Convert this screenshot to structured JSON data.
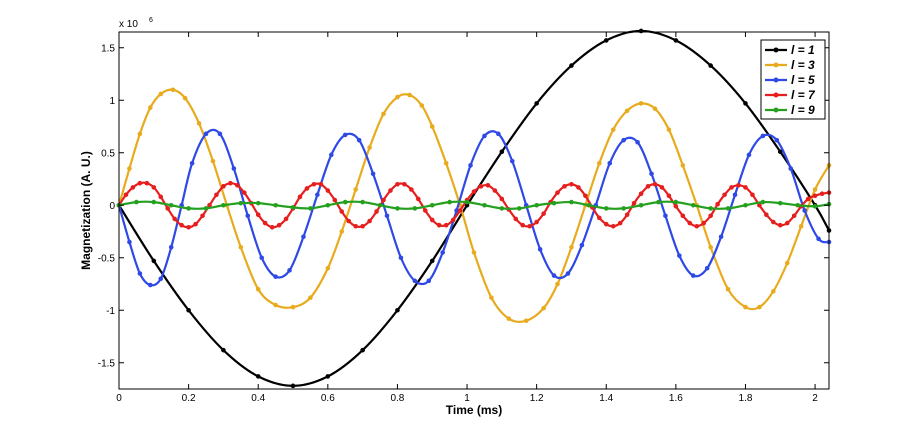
{
  "chart_data": {
    "type": "line",
    "xlabel": "Time (ms)",
    "ylabel": "Magnetization (A. U.)",
    "y_exponent_base": "x 10",
    "y_exponent_power": "6",
    "xlim": [
      0,
      2.04
    ],
    "ylim": [
      -1.75,
      1.65
    ],
    "x_ticks": [
      0,
      0.2,
      0.4,
      0.6,
      0.8,
      1,
      1.2,
      1.4,
      1.6,
      1.8,
      2
    ],
    "x_tick_labels": [
      "0",
      "0.2",
      "0.4",
      "0.6",
      "0.8",
      "1",
      "1.2",
      "1.4",
      "1.6",
      "1.8",
      "2"
    ],
    "y_ticks": [
      -1.5,
      -1,
      -0.5,
      0,
      0.5,
      1,
      1.5
    ],
    "y_tick_labels": [
      "-1.5",
      "-1",
      "-0.5",
      "0",
      "0.5",
      "1",
      "1.5"
    ],
    "grid": false,
    "legend_position": "top-right",
    "series": [
      {
        "name": "l = 1",
        "color": "#000000",
        "x": [
          0,
          0.1,
          0.2,
          0.3,
          0.4,
          0.5,
          0.6,
          0.7,
          0.8,
          0.9,
          1.0,
          1.1,
          1.2,
          1.3,
          1.4,
          1.5,
          1.6,
          1.7,
          1.8,
          1.9,
          2.0,
          2.04
        ],
        "values": [
          0,
          -0.53,
          -1.0,
          -1.38,
          -1.63,
          -1.72,
          -1.63,
          -1.38,
          -1.0,
          -0.53,
          0,
          0.51,
          0.97,
          1.33,
          1.57,
          1.66,
          1.57,
          1.33,
          0.97,
          0.51,
          0,
          -0.24
        ]
      },
      {
        "name": "l = 3",
        "color": "#e8ab1e",
        "x": [
          0,
          0.03,
          0.06,
          0.09,
          0.12,
          0.155,
          0.19,
          0.23,
          0.27,
          0.31,
          0.35,
          0.4,
          0.45,
          0.5,
          0.55,
          0.6,
          0.64,
          0.68,
          0.72,
          0.76,
          0.8,
          0.835,
          0.87,
          0.9,
          0.94,
          0.98,
          1.02,
          1.07,
          1.12,
          1.17,
          1.22,
          1.26,
          1.3,
          1.34,
          1.38,
          1.42,
          1.46,
          1.5,
          1.54,
          1.58,
          1.62,
          1.66,
          1.7,
          1.75,
          1.8,
          1.84,
          1.88,
          1.92,
          1.96,
          2.0,
          2.04
        ],
        "values": [
          0,
          0.35,
          0.68,
          0.93,
          1.06,
          1.1,
          1.02,
          0.78,
          0.42,
          0.0,
          -0.4,
          -0.8,
          -0.95,
          -0.97,
          -0.88,
          -0.6,
          -0.25,
          0.15,
          0.55,
          0.87,
          1.03,
          1.05,
          0.95,
          0.75,
          0.4,
          0.0,
          -0.45,
          -0.88,
          -1.08,
          -1.1,
          -0.98,
          -0.75,
          -0.4,
          0.0,
          0.4,
          0.72,
          0.9,
          0.97,
          0.92,
          0.72,
          0.38,
          0.0,
          -0.4,
          -0.8,
          -0.97,
          -0.97,
          -0.82,
          -0.55,
          -0.2,
          0.15,
          0.38
        ]
      },
      {
        "name": "l = 5",
        "color": "#2e49e6",
        "x": [
          0,
          0.03,
          0.06,
          0.09,
          0.12,
          0.15,
          0.18,
          0.21,
          0.25,
          0.29,
          0.33,
          0.37,
          0.41,
          0.45,
          0.49,
          0.53,
          0.57,
          0.61,
          0.65,
          0.69,
          0.73,
          0.77,
          0.81,
          0.85,
          0.89,
          0.93,
          0.97,
          1.01,
          1.05,
          1.09,
          1.13,
          1.17,
          1.21,
          1.25,
          1.29,
          1.33,
          1.37,
          1.41,
          1.45,
          1.49,
          1.53,
          1.57,
          1.61,
          1.65,
          1.69,
          1.73,
          1.77,
          1.81,
          1.85,
          1.89,
          1.93,
          1.97,
          2.01,
          2.04
        ],
        "values": [
          0,
          -0.35,
          -0.65,
          -0.76,
          -0.7,
          -0.4,
          0.0,
          0.4,
          0.68,
          0.68,
          0.35,
          -0.1,
          -0.5,
          -0.68,
          -0.62,
          -0.3,
          0.1,
          0.48,
          0.67,
          0.62,
          0.3,
          -0.1,
          -0.5,
          -0.72,
          -0.72,
          -0.45,
          -0.05,
          0.38,
          0.66,
          0.68,
          0.42,
          0.0,
          -0.42,
          -0.67,
          -0.65,
          -0.38,
          0.0,
          0.4,
          0.62,
          0.6,
          0.3,
          -0.1,
          -0.48,
          -0.67,
          -0.6,
          -0.3,
          0.1,
          0.48,
          0.66,
          0.62,
          0.35,
          -0.05,
          -0.32,
          -0.35
        ]
      },
      {
        "name": "l = 7",
        "color": "#e61e1e",
        "x": [
          0,
          0.02,
          0.04,
          0.06,
          0.08,
          0.1,
          0.12,
          0.14,
          0.16,
          0.18,
          0.2,
          0.22,
          0.24,
          0.26,
          0.28,
          0.3,
          0.32,
          0.34,
          0.36,
          0.38,
          0.4,
          0.42,
          0.44,
          0.46,
          0.48,
          0.5,
          0.52,
          0.54,
          0.56,
          0.58,
          0.6,
          0.62,
          0.64,
          0.66,
          0.68,
          0.7,
          0.72,
          0.74,
          0.76,
          0.78,
          0.8,
          0.82,
          0.84,
          0.86,
          0.88,
          0.9,
          0.92,
          0.94,
          0.96,
          0.98,
          1.0,
          1.02,
          1.04,
          1.06,
          1.08,
          1.1,
          1.12,
          1.14,
          1.16,
          1.18,
          1.2,
          1.22,
          1.24,
          1.26,
          1.28,
          1.3,
          1.32,
          1.34,
          1.36,
          1.38,
          1.4,
          1.42,
          1.44,
          1.46,
          1.48,
          1.5,
          1.52,
          1.54,
          1.56,
          1.58,
          1.6,
          1.62,
          1.64,
          1.66,
          1.68,
          1.7,
          1.72,
          1.74,
          1.76,
          1.78,
          1.8,
          1.82,
          1.84,
          1.86,
          1.88,
          1.9,
          1.92,
          1.94,
          1.96,
          1.98,
          2.0,
          2.02,
          2.04
        ],
        "values": [
          0,
          0.1,
          0.17,
          0.21,
          0.21,
          0.17,
          0.08,
          -0.03,
          -0.13,
          -0.19,
          -0.21,
          -0.18,
          -0.1,
          0.0,
          0.1,
          0.18,
          0.21,
          0.19,
          0.12,
          0.02,
          -0.09,
          -0.17,
          -0.21,
          -0.19,
          -0.13,
          -0.03,
          0.08,
          0.16,
          0.2,
          0.2,
          0.14,
          0.05,
          -0.06,
          -0.15,
          -0.2,
          -0.2,
          -0.15,
          -0.06,
          0.05,
          0.14,
          0.2,
          0.2,
          0.15,
          0.06,
          -0.05,
          -0.14,
          -0.19,
          -0.19,
          -0.14,
          -0.05,
          0.05,
          0.13,
          0.18,
          0.19,
          0.14,
          0.06,
          -0.04,
          -0.13,
          -0.19,
          -0.2,
          -0.16,
          -0.08,
          0.03,
          0.12,
          0.18,
          0.2,
          0.17,
          0.09,
          -0.02,
          -0.12,
          -0.18,
          -0.2,
          -0.17,
          -0.09,
          0.02,
          0.11,
          0.18,
          0.2,
          0.17,
          0.09,
          -0.01,
          -0.1,
          -0.17,
          -0.2,
          -0.17,
          -0.1,
          0.01,
          0.1,
          0.17,
          0.19,
          0.17,
          0.1,
          0.0,
          -0.09,
          -0.16,
          -0.19,
          -0.17,
          -0.1,
          -0.01,
          0.06,
          0.09,
          0.11,
          0.12
        ]
      },
      {
        "name": "l = 9",
        "color": "#24a01e",
        "x": [
          0,
          0.05,
          0.1,
          0.15,
          0.2,
          0.25,
          0.3,
          0.35,
          0.4,
          0.45,
          0.5,
          0.55,
          0.6,
          0.65,
          0.7,
          0.75,
          0.8,
          0.85,
          0.9,
          0.95,
          1.0,
          1.05,
          1.1,
          1.15,
          1.2,
          1.25,
          1.3,
          1.35,
          1.4,
          1.45,
          1.5,
          1.55,
          1.6,
          1.65,
          1.7,
          1.75,
          1.8,
          1.85,
          1.9,
          1.95,
          2.0,
          2.04
        ],
        "values": [
          0,
          0.03,
          0.03,
          0.0,
          -0.03,
          -0.03,
          0.0,
          0.02,
          0.02,
          0.0,
          -0.02,
          -0.03,
          0.0,
          0.03,
          0.03,
          0.0,
          -0.03,
          -0.03,
          0.0,
          0.03,
          0.03,
          0.0,
          -0.03,
          -0.03,
          0.0,
          0.02,
          0.03,
          0.0,
          -0.03,
          -0.03,
          0.0,
          0.03,
          0.03,
          0.0,
          -0.03,
          -0.03,
          0.0,
          0.03,
          0.02,
          0.0,
          -0.01,
          0.01
        ]
      }
    ]
  }
}
